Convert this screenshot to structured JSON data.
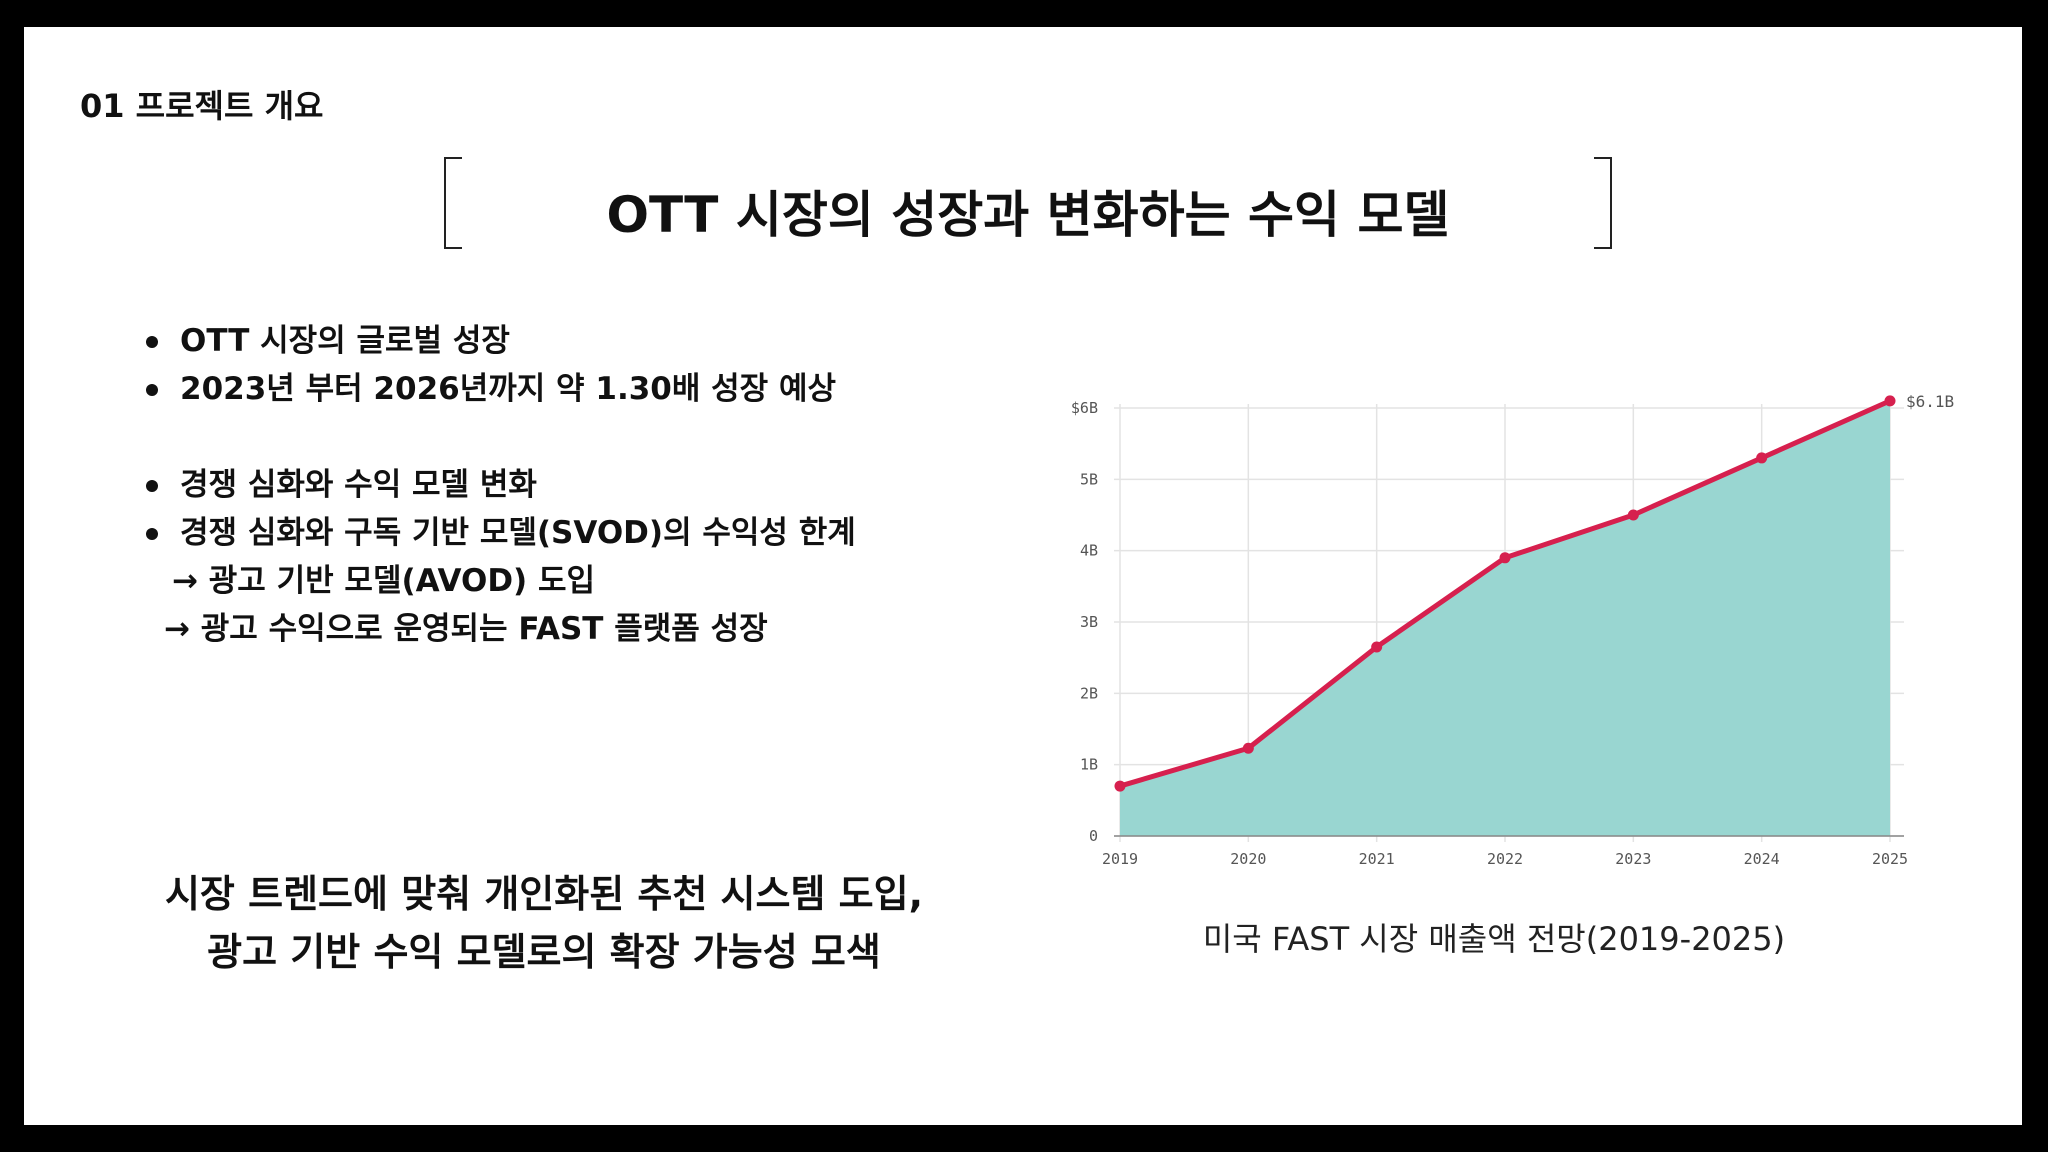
{
  "section_label": "01  프로젝트 개요",
  "title": "OTT 시장의 성장과 변화하는 수익 모델",
  "bullets_group1": [
    "OTT 시장의 글로벌 성장",
    "2023년 부터 2026년까지 약 1.30배 성장 예상"
  ],
  "bullets_group2": [
    "경쟁 심화와 수익 모델 변화",
    "경쟁 심화와 구독 기반 모델(SVOD)의 수익성  한계"
  ],
  "arrow_lines": [
    "→ 광고 기반 모델(AVOD) 도입",
    "→ 광고 수익으로 운영되는 FAST 플랫폼 성장"
  ],
  "conclusion": [
    "시장 트렌드에 맞춰 개인화된 추천 시스템 도입,",
    "광고 기반 수익 모델로의 확장 가능성 모색"
  ],
  "chart_caption": "미국 FAST 시장 매출액 전망(2019-2025)",
  "chart_data": {
    "type": "area",
    "x": [
      "2019",
      "2020",
      "2021",
      "2022",
      "2023",
      "2024",
      "2025"
    ],
    "series": [
      {
        "values": [
          0.7,
          1.23,
          2.65,
          3.9,
          4.5,
          5.3,
          6.1
        ]
      }
    ],
    "yticks": [
      {
        "value": 0,
        "label": "0"
      },
      {
        "value": 1,
        "label": "1B"
      },
      {
        "value": 2,
        "label": "2B"
      },
      {
        "value": 3,
        "label": "3B"
      },
      {
        "value": 4,
        "label": "4B"
      },
      {
        "value": 5,
        "label": "5B"
      },
      {
        "value": 6,
        "label": "$6B"
      }
    ],
    "ylim": [
      0,
      6
    ],
    "end_label": "$6.1B",
    "grid": true,
    "colors": {
      "line": "#d6204e",
      "fill": "#99d6d1",
      "grid": "#e3e3e3",
      "axis": "#888888",
      "tick_text": "#555555"
    }
  }
}
